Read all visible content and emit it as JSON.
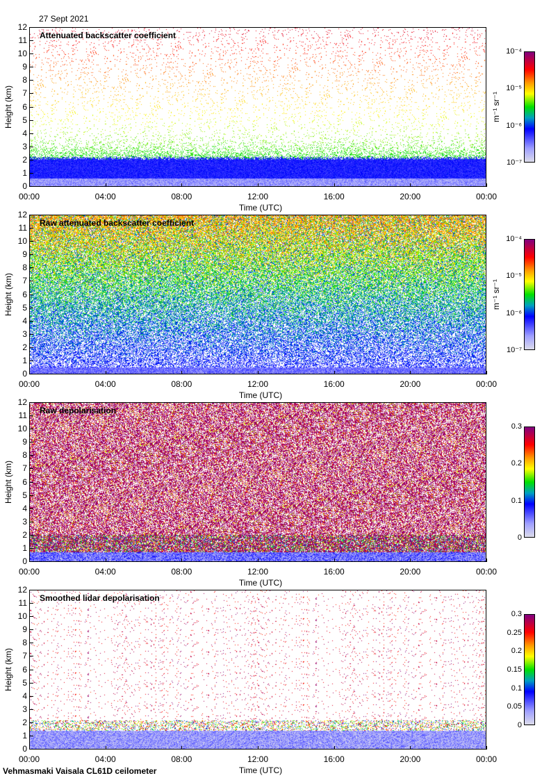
{
  "date": "27 Sept 2021",
  "footer": "Vehmasmaki Vaisala CL61D ceilometer",
  "chart_data": [
    {
      "type": "heatmap",
      "title": "Attenuated backscatter coefficient",
      "xlabel": "Time (UTC)",
      "ylabel": "Height (km)",
      "ylim": [
        0,
        12
      ],
      "yticks": [
        "0",
        "1",
        "2",
        "3",
        "4",
        "5",
        "6",
        "7",
        "8",
        "9",
        "10",
        "11",
        "12"
      ],
      "xticks": [
        "00:00",
        "04:00",
        "08:00",
        "12:00",
        "16:00",
        "20:00",
        "00:00"
      ],
      "colorbar": {
        "scale": "log",
        "range": [
          1e-07,
          0.0001
        ],
        "ticks": [
          "10⁻⁷",
          "10⁻⁶",
          "10⁻⁵",
          "10⁻⁴"
        ],
        "unit": "m⁻¹ sr⁻¹"
      },
      "mode": 1
    },
    {
      "type": "heatmap",
      "title": "Raw attenuated backscatter coefficient",
      "xlabel": "Time (UTC)",
      "ylabel": "Height (km)",
      "ylim": [
        0,
        12
      ],
      "yticks": [
        "0",
        "1",
        "2",
        "3",
        "4",
        "5",
        "6",
        "7",
        "8",
        "9",
        "10",
        "11",
        "12"
      ],
      "xticks": [
        "00:00",
        "04:00",
        "08:00",
        "12:00",
        "16:00",
        "20:00",
        "00:00"
      ],
      "colorbar": {
        "scale": "log",
        "range": [
          1e-07,
          0.0001
        ],
        "ticks": [
          "10⁻⁷",
          "10⁻⁶",
          "10⁻⁵",
          "10⁻⁴"
        ],
        "unit": "m⁻¹ sr⁻¹"
      },
      "mode": 2
    },
    {
      "type": "heatmap",
      "title": "Raw depolarisation",
      "xlabel": "Time (UTC)",
      "ylabel": "Height (km)",
      "ylim": [
        0,
        12
      ],
      "yticks": [
        "0",
        "1",
        "2",
        "3",
        "4",
        "5",
        "6",
        "7",
        "8",
        "9",
        "10",
        "11",
        "12"
      ],
      "xticks": [
        "00:00",
        "04:00",
        "08:00",
        "12:00",
        "16:00",
        "20:00",
        "00:00"
      ],
      "colorbar": {
        "scale": "linear",
        "range": [
          0,
          0.3
        ],
        "ticks": [
          "0",
          "0.1",
          "0.2",
          "0.3"
        ],
        "unit": ""
      },
      "mode": 3
    },
    {
      "type": "heatmap",
      "title": "Smoothed lidar depolarisation",
      "xlabel": "Time (UTC)",
      "ylabel": "Height (km)",
      "ylim": [
        0,
        12
      ],
      "yticks": [
        "0",
        "1",
        "2",
        "3",
        "4",
        "5",
        "6",
        "7",
        "8",
        "9",
        "10",
        "11",
        "12"
      ],
      "xticks": [
        "00:00",
        "04:00",
        "08:00",
        "12:00",
        "16:00",
        "20:00",
        "00:00"
      ],
      "colorbar": {
        "scale": "linear",
        "range": [
          0,
          0.3
        ],
        "ticks": [
          "0",
          "0.05",
          "0.1",
          "0.15",
          "0.2",
          "0.25",
          "0.3"
        ],
        "unit": ""
      },
      "mode": 4
    }
  ]
}
